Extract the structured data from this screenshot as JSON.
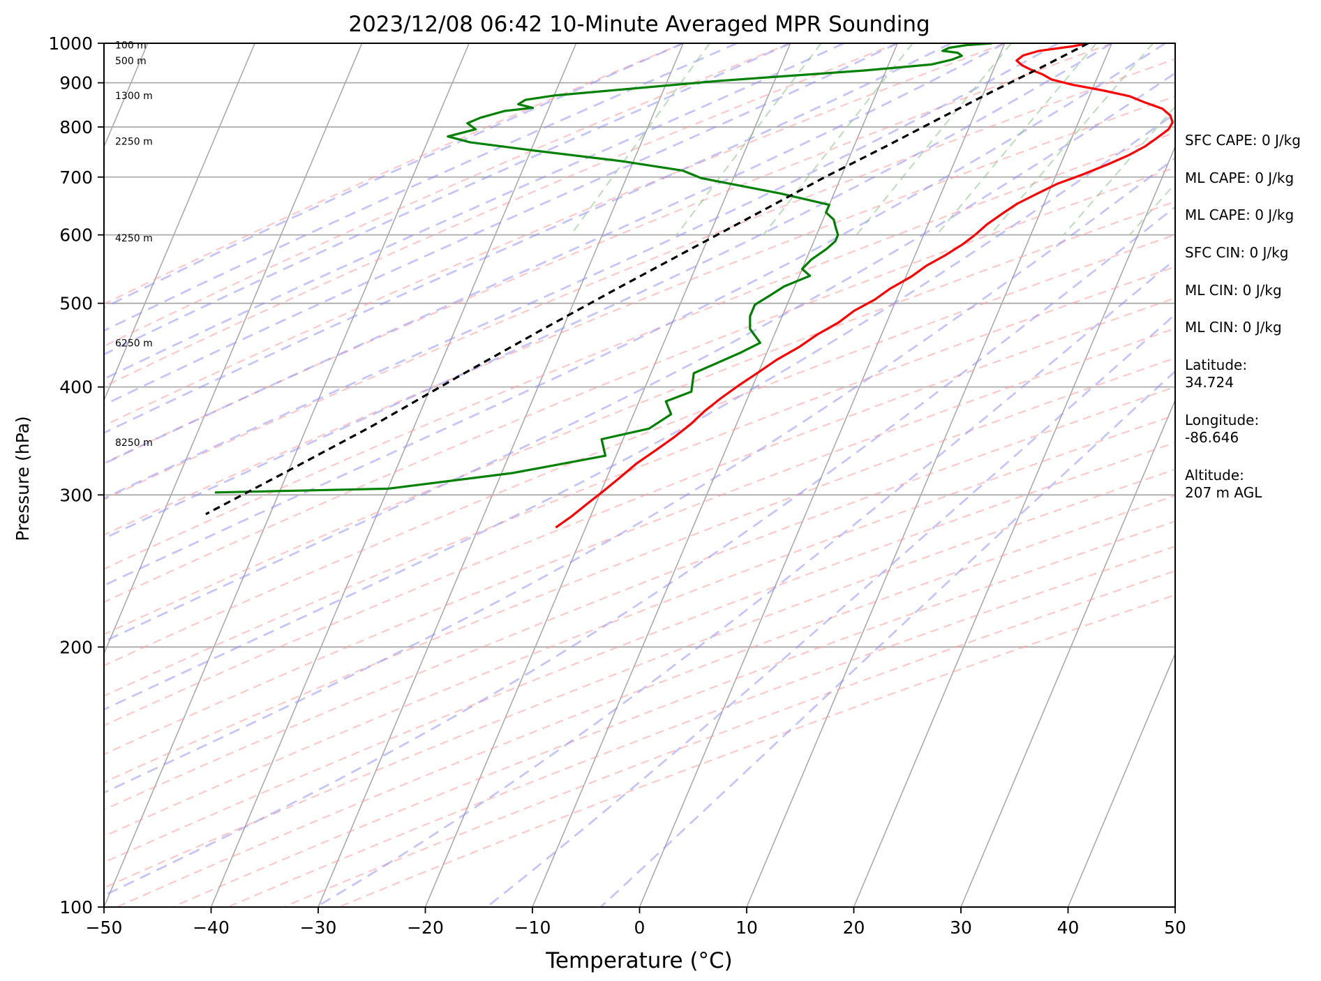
{
  "chart_data": {
    "type": "line",
    "subtype": "skew-t log-p",
    "title": "2023/12/08 06:42 10-Minute Averaged MPR Sounding",
    "xlabel": "Temperature (°C)",
    "ylabel": "Pressure (hPa)",
    "xlim": [
      -50,
      50
    ],
    "ylim": [
      1000,
      100
    ],
    "y_scale": "log",
    "grid": "horizontal at 100-hPa levels",
    "x_ticks": [
      "−50",
      "−40",
      "−30",
      "−20",
      "−10",
      "0",
      "10",
      "20",
      "30",
      "40",
      "50"
    ],
    "y_ticks": [
      "100",
      "200",
      "300",
      "400",
      "500",
      "600",
      "700",
      "800",
      "900",
      "1000"
    ],
    "height_labels": [
      {
        "p": 345,
        "text": "8250 m"
      },
      {
        "p": 450,
        "text": "6250 m"
      },
      {
        "p": 595,
        "text": "4250 m"
      },
      {
        "p": 770,
        "text": "2250 m"
      },
      {
        "p": 870,
        "text": "1300 m"
      },
      {
        "p": 955,
        "text": "500 m"
      },
      {
        "p": 995,
        "text": "100 m"
      }
    ],
    "series": [
      {
        "role": "temperature",
        "color": "#ff0000",
        "points": [
          [
            7.8,
            1000
          ],
          [
            6.5,
            992
          ],
          [
            3.5,
            980
          ],
          [
            2.2,
            968
          ],
          [
            1.8,
            955
          ],
          [
            2.5,
            943
          ],
          [
            3.5,
            932
          ],
          [
            4.8,
            920
          ],
          [
            5.8,
            908
          ],
          [
            8,
            895
          ],
          [
            11,
            882
          ],
          [
            13.8,
            868
          ],
          [
            15.3,
            855
          ],
          [
            17.3,
            840
          ],
          [
            18.3,
            825
          ],
          [
            18.8,
            810
          ],
          [
            18.7,
            795
          ],
          [
            18,
            778
          ],
          [
            17.2,
            760
          ],
          [
            16,
            742
          ],
          [
            14.5,
            725
          ],
          [
            12.5,
            705
          ],
          [
            10.5,
            688
          ],
          [
            9,
            670
          ],
          [
            7.5,
            652
          ],
          [
            6.5,
            635
          ],
          [
            5.5,
            617
          ],
          [
            4.8,
            600
          ],
          [
            4,
            585
          ],
          [
            2.8,
            568
          ],
          [
            1.5,
            553
          ],
          [
            0.5,
            537
          ],
          [
            -1,
            520
          ],
          [
            -2,
            505
          ],
          [
            -3.5,
            490
          ],
          [
            -4.5,
            475
          ],
          [
            -6,
            460
          ],
          [
            -7.2,
            445
          ],
          [
            -8.8,
            430
          ],
          [
            -10,
            416
          ],
          [
            -11.3,
            402
          ],
          [
            -12.5,
            388
          ],
          [
            -13.5,
            375
          ],
          [
            -14.3,
            362
          ],
          [
            -15.3,
            350
          ],
          [
            -16.5,
            338
          ],
          [
            -17.8,
            326
          ],
          [
            -18.8,
            314
          ],
          [
            -19.8,
            303
          ],
          [
            -20.8,
            293
          ],
          [
            -21.8,
            283
          ],
          [
            -22.8,
            275
          ]
        ]
      },
      {
        "role": "dewpoint",
        "color": "#008000",
        "points": [
          [
            -1.2,
            1000
          ],
          [
            -3.5,
            995
          ],
          [
            -5,
            988
          ],
          [
            -5.5,
            980
          ],
          [
            -4,
            975
          ],
          [
            -3.5,
            967
          ],
          [
            -4.3,
            957
          ],
          [
            -6,
            945
          ],
          [
            -12,
            930
          ],
          [
            -25,
            905
          ],
          [
            -40,
            870
          ],
          [
            -42.5,
            860
          ],
          [
            -43,
            850
          ],
          [
            -41.5,
            842
          ],
          [
            -44,
            835
          ],
          [
            -46,
            820
          ],
          [
            -47,
            808
          ],
          [
            -46,
            795
          ],
          [
            -48.3,
            780
          ],
          [
            -46,
            768
          ],
          [
            -40,
            752
          ],
          [
            -31,
            730
          ],
          [
            -25,
            712
          ],
          [
            -23,
            698
          ],
          [
            -15,
            670
          ],
          [
            -10,
            650
          ],
          [
            -10,
            637
          ],
          [
            -9,
            625
          ],
          [
            -8.5,
            612
          ],
          [
            -8,
            600
          ],
          [
            -8,
            590
          ],
          [
            -8.5,
            578
          ],
          [
            -9.5,
            562
          ],
          [
            -10,
            548
          ],
          [
            -9,
            538
          ],
          [
            -11,
            523
          ],
          [
            -12,
            510
          ],
          [
            -13,
            498
          ],
          [
            -13,
            483
          ],
          [
            -12.5,
            467
          ],
          [
            -11,
            450
          ],
          [
            -12.5,
            438
          ],
          [
            -16,
            415
          ],
          [
            -15.5,
            395
          ],
          [
            -17.5,
            385
          ],
          [
            -16.5,
            372
          ],
          [
            -18,
            358
          ],
          [
            -22,
            348
          ],
          [
            -21,
            333
          ],
          [
            -29,
            318
          ],
          [
            -40,
            305
          ],
          [
            -56,
            302
          ]
        ]
      },
      {
        "role": "parcel",
        "color": "#000000",
        "dashed": true,
        "points": [
          [
            7.8,
            1000
          ],
          [
            4.5,
            940
          ],
          [
            0.8,
            880
          ],
          [
            -3,
            820
          ],
          [
            -7,
            760
          ],
          [
            -11.5,
            700
          ],
          [
            -16,
            640
          ],
          [
            -21,
            580
          ],
          [
            -26.5,
            520
          ],
          [
            -32,
            465
          ],
          [
            -38,
            410
          ],
          [
            -44,
            360
          ],
          [
            -50,
            320
          ],
          [
            -56,
            285
          ]
        ]
      }
    ]
  },
  "info_panel": {
    "sfc_cape": "SFC CAPE: 0 J/kg",
    "ml_cape_1": "ML CAPE: 0 J/kg",
    "ml_cape_2": "ML CAPE: 0 J/kg",
    "sfc_cin": "SFC CIN: 0 J/kg",
    "ml_cin_1": "ML CIN: 0 J/kg",
    "ml_cin_2": "ML CIN: 0 J/kg",
    "latitude_label": "Latitude:",
    "latitude_value": "34.724",
    "longitude_label": "Longitude:",
    "longitude_value": "-86.646",
    "altitude_label": "Altitude:",
    "altitude_value": "207 m AGL"
  }
}
